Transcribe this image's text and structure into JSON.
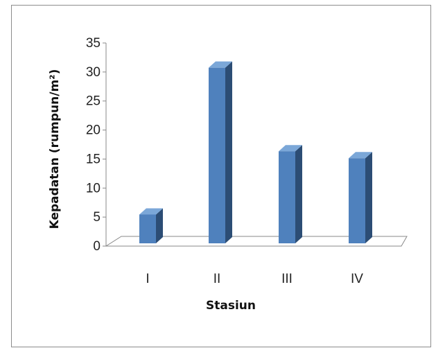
{
  "chart_data": {
    "type": "bar",
    "categories": [
      "I",
      "II",
      "III",
      "IV"
    ],
    "values": [
      5.2,
      30.5,
      16.1,
      14.9
    ],
    "xlabel": "Stasiun",
    "ylabel": "Kepadatan (rumpun/m²)",
    "ylim": [
      0,
      35
    ],
    "yticks": [
      0,
      5,
      10,
      15,
      20,
      25,
      30,
      35
    ],
    "grid": false,
    "legend": "none",
    "style": "3d-column",
    "colors": {
      "bar_front": "#4f81bd",
      "bar_side": "#2c4d75",
      "bar_top": "#7ba7d8",
      "floor": "#ffffff",
      "axis": "#888888"
    }
  }
}
